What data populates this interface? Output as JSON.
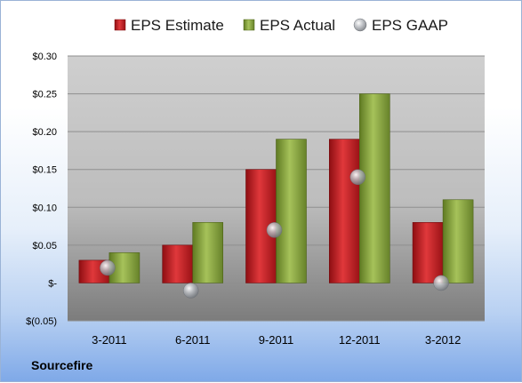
{
  "company": "Sourcefire",
  "colors": {
    "estimate": "#c0181c",
    "actual": "#8aa83a",
    "gaap": "#a8acb2"
  },
  "chart_data": {
    "type": "bar",
    "categories": [
      "3-2011",
      "6-2011",
      "9-2011",
      "12-2011",
      "3-2012"
    ],
    "series": [
      {
        "name": "EPS Estimate",
        "values": [
          0.03,
          0.05,
          0.15,
          0.19,
          0.08
        ]
      },
      {
        "name": "EPS Actual",
        "values": [
          0.04,
          0.08,
          0.19,
          0.25,
          0.11
        ]
      },
      {
        "name": "EPS GAAP",
        "values": [
          0.02,
          -0.01,
          0.07,
          0.14,
          0.0
        ],
        "marker": "sphere"
      }
    ],
    "y_ticks": [
      {
        "value": 0.3,
        "label": "$0.30"
      },
      {
        "value": 0.25,
        "label": "$0.25"
      },
      {
        "value": 0.2,
        "label": "$0.20"
      },
      {
        "value": 0.15,
        "label": "$0.15"
      },
      {
        "value": 0.1,
        "label": "$0.10"
      },
      {
        "value": 0.05,
        "label": "$0.05"
      },
      {
        "value": 0.0,
        "label": "$-"
      },
      {
        "value": -0.05,
        "label": "$(0.05)"
      }
    ],
    "ylim": [
      -0.05,
      0.3
    ],
    "grid": true,
    "legend": "top"
  }
}
